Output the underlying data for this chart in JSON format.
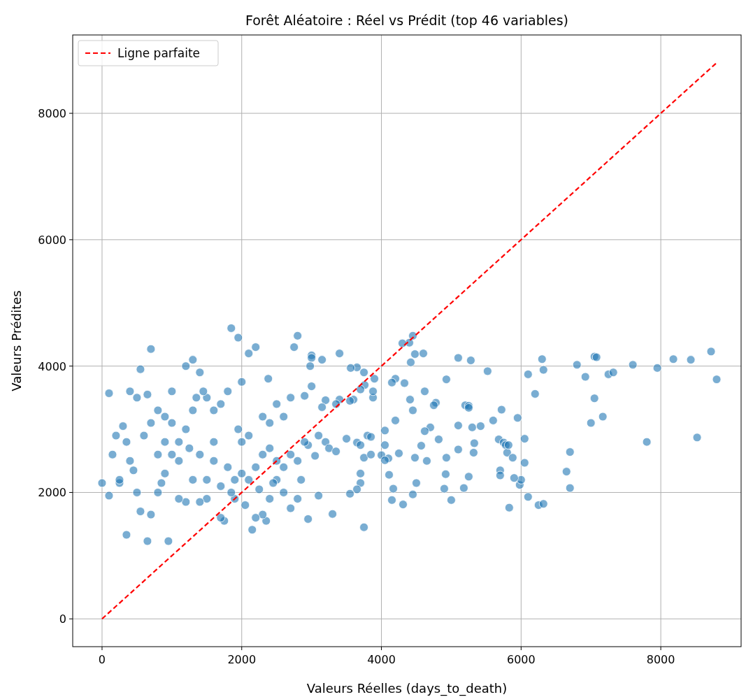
{
  "chart_data": {
    "type": "scatter",
    "title": "Forêt Aléatoire : Réel vs Prédit (top 46 variables)",
    "xlabel": "Valeurs Réelles (days_to_death)",
    "ylabel": "Valeurs Prédites",
    "xlim": [
      -420,
      9150
    ],
    "ylim": [
      -440,
      9240
    ],
    "xticks": [
      0,
      2000,
      4000,
      6000,
      8000
    ],
    "yticks": [
      0,
      2000,
      4000,
      6000,
      8000
    ],
    "grid": true,
    "legend": "top left",
    "series": [
      {
        "marker": "circle",
        "color": "#1f77b4",
        "x": [
          6300,
          6320,
          6100,
          6200,
          6050,
          6050,
          6100,
          6250,
          6320,
          5950,
          5980,
          6000,
          6650,
          6700,
          6700,
          6800,
          6920,
          7000,
          7050,
          7080,
          7050,
          7170,
          7250,
          7320,
          7600,
          7800,
          7950,
          8180,
          8430,
          8520,
          8720,
          8800,
          5520,
          5600,
          5680,
          5720,
          5700,
          5700,
          5750,
          5780,
          5800,
          5820,
          5830,
          5880,
          5900,
          5280,
          5100,
          5200,
          5250,
          5250,
          5300,
          5320,
          5330,
          5420,
          5100,
          5100,
          5250,
          5180,
          5000,
          4900,
          4920,
          4930,
          4930,
          4820,
          4780,
          4750,
          4700,
          4620,
          4620,
          4650,
          4570,
          4480,
          4500,
          4450,
          4450,
          4400,
          4420,
          4480,
          4600,
          4450,
          4410,
          4300,
          4330,
          4200,
          4150,
          4200,
          4250,
          4310,
          4170,
          4150,
          4110,
          4100,
          4050,
          4000,
          4050,
          4050,
          3900,
          3880,
          3880,
          3750,
          3760,
          3650,
          3560,
          3700,
          3600,
          3550,
          3400,
          3350,
          3200,
          3150,
          3100,
          3000,
          3000,
          2980,
          3150,
          3400,
          3000,
          2900,
          2950,
          3050,
          3200,
          3250,
          3350,
          3500,
          3650,
          3800,
          3850,
          3700,
          3750,
          3850,
          3700,
          3650,
          3550,
          3700,
          3750,
          3300,
          3100,
          2950,
          2850,
          2700,
          2800,
          2600,
          2500,
          2400,
          2350,
          2300,
          2150,
          2200,
          2050,
          1900,
          1850,
          1750,
          1700,
          2000,
          2100,
          2200,
          2300,
          2400,
          2500,
          2600,
          2700,
          2800,
          2900,
          2300,
          2400,
          2500,
          2600,
          2700,
          2100,
          2000,
          1950,
          1850,
          1950,
          2200,
          2100,
          2380,
          2750,
          2800,
          2000,
          1800,
          1700,
          1600,
          1500,
          1400,
          1300,
          1200,
          1000,
          900,
          800,
          700,
          550,
          500,
          400,
          300,
          200,
          100,
          150,
          0,
          100,
          250,
          350,
          350,
          450,
          500,
          550,
          650,
          700,
          800,
          900,
          950,
          1000,
          1100,
          1200,
          1300,
          1400,
          1500,
          1600,
          1700,
          1800,
          1200,
          1300,
          1100,
          600,
          700,
          800,
          900,
          1000,
          400,
          250,
          1500,
          1600,
          1900,
          1400,
          1100,
          2450,
          2250,
          1250,
          1350,
          1450,
          650,
          850
        ],
        "values": [
          4110,
          3940,
          3870,
          3560,
          2850,
          2470,
          1930,
          1800,
          1820,
          3180,
          2120,
          2200,
          2330,
          2640,
          2070,
          4020,
          3830,
          3100,
          4150,
          4140,
          3490,
          3200,
          3870,
          3900,
          4020,
          2800,
          3970,
          4110,
          4100,
          2870,
          4230,
          3790,
          3920,
          3140,
          2840,
          3310,
          2350,
          2270,
          2790,
          2750,
          2630,
          2750,
          1760,
          2550,
          2230,
          4090,
          4130,
          3380,
          3370,
          3340,
          3030,
          2630,
          2780,
          3050,
          3060,
          2680,
          2250,
          2070,
          1880,
          2060,
          2290,
          2550,
          3790,
          2840,
          3420,
          3380,
          3030,
          2970,
          3600,
          2500,
          2740,
          2550,
          2150,
          1970,
          4480,
          4370,
          4060,
          4190,
          4200,
          3300,
          3470,
          4360,
          3730,
          3800,
          3740,
          3140,
          2620,
          1810,
          2060,
          1880,
          2280,
          2540,
          2980,
          2590,
          2510,
          2750,
          3800,
          3500,
          3600,
          3900,
          3700,
          3980,
          3970,
          3630,
          3470,
          3450,
          3470,
          3400,
          3460,
          3350,
          2900,
          4170,
          4130,
          4000,
          4100,
          4200,
          3680,
          3530,
          2750,
          2580,
          2800,
          2700,
          2650,
          2850,
          2790,
          2900,
          2880,
          2750,
          2550,
          2600,
          2150,
          2050,
          1980,
          2300,
          1450,
          1660,
          1950,
          1580,
          2200,
          1750,
          1900,
          2000,
          2200,
          1900,
          1550,
          1650,
          1410,
          1600,
          1800,
          1900,
          2000,
          1550,
          1600,
          2300,
          2200,
          2400,
          2600,
          2700,
          2500,
          2400,
          2600,
          2500,
          2800,
          3200,
          3100,
          3400,
          3200,
          3500,
          2900,
          2800,
          3000,
          4600,
          4450,
          4300,
          4200,
          3800,
          4300,
          4480,
          3750,
          3600,
          3400,
          3300,
          3500,
          3900,
          4100,
          4000,
          3600,
          3200,
          3300,
          4270,
          3950,
          3500,
          3600,
          3050,
          2900,
          3570,
          2600,
          2150,
          1950,
          2150,
          1330,
          2800,
          2350,
          2000,
          1700,
          1230,
          1650,
          2000,
          2300,
          1230,
          2600,
          2800,
          1850,
          2200,
          2600,
          2200,
          2800,
          2100,
          2400,
          3000,
          3300,
          2500,
          2900,
          3100,
          2600,
          2800,
          3100,
          2500,
          2200,
          1900,
          2500,
          2200,
          1850,
          1900,
          2150,
          2050,
          2700,
          3500,
          3600,
          3550,
          2150
        ]
      },
      {
        "type": "line",
        "name": "Ligne parfaite",
        "color": "#ff0000",
        "line_style": "dashed",
        "x": [
          0,
          8800
        ],
        "values": [
          0,
          8800
        ]
      }
    ]
  }
}
